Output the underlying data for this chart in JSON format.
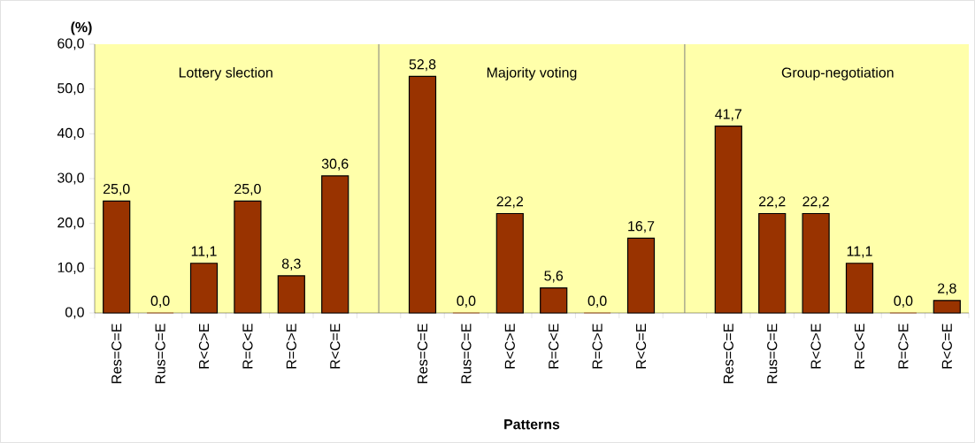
{
  "chart_data": {
    "type": "bar",
    "xlabel": "Patterns",
    "ylabel": "(%)",
    "categories": [
      "Res=C=E",
      "Rus=C=E",
      "R<C>E",
      "R=C<E",
      "R=C>E",
      "R<C=E",
      null,
      "Res=C=E",
      "Rus=C=E",
      "R<C>E",
      "R=C<E",
      "R=C>E",
      "R<C=E",
      null,
      "Res=C=E",
      "Rus=C=E",
      "R<C>E",
      "R=C<E",
      "R=C>E",
      "R<C=E"
    ],
    "values": [
      25.0,
      0.0,
      11.1,
      25.0,
      8.3,
      30.6,
      null,
      52.8,
      0.0,
      22.2,
      5.6,
      0.0,
      16.7,
      null,
      41.7,
      22.2,
      22.2,
      11.1,
      0.0,
      2.8
    ],
    "value_labels": [
      "25,0",
      "0,0",
      "11,1",
      "25,0",
      "8,3",
      "30,6",
      null,
      "52,8",
      "0,0",
      "22,2",
      "5,6",
      "0,0",
      "16,7",
      null,
      "41,7",
      "22,2",
      "22,2",
      "11,1",
      "0,0",
      "2,8"
    ],
    "color": "#993300",
    "ylim": [
      0,
      60
    ],
    "yticks": [
      {
        "value": 0,
        "label": "0,0"
      },
      {
        "value": 10,
        "label": "10,0"
      },
      {
        "value": 20,
        "label": "20,0"
      },
      {
        "value": 30,
        "label": "30,0"
      },
      {
        "value": 40,
        "label": "40,0"
      },
      {
        "value": 50,
        "label": "50,0"
      },
      {
        "value": 60,
        "label": "60,0"
      }
    ],
    "annotations": [
      "Lottery slection",
      "Majority voting",
      "Group-negotiation"
    ]
  }
}
